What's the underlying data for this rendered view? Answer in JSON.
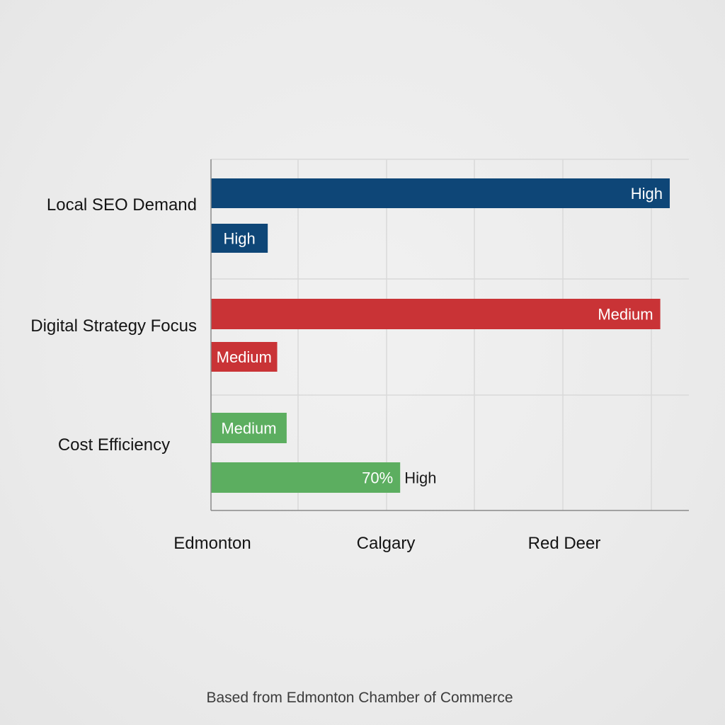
{
  "chart_data": {
    "type": "bar",
    "orientation": "horizontal",
    "title": "",
    "xlabel": "",
    "ylabel": "",
    "x_tick_labels": [
      "Edmonton",
      "Calgary",
      "Red Deer"
    ],
    "xlim": [
      0,
      100
    ],
    "grid": true,
    "legend": "none",
    "categories": [
      "Local SEO Demand",
      "Digital Strategy Focus",
      "Cost Efficiency"
    ],
    "bars": [
      {
        "category": "Local SEO Demand",
        "value": 97,
        "color": "#0e4677",
        "label": "High",
        "label_position": "inside-end"
      },
      {
        "category": "Local SEO Demand",
        "value": 12,
        "color": "#0e4677",
        "label": "High",
        "label_position": "inside-center"
      },
      {
        "category": "Digital Strategy Focus",
        "value": 95,
        "color": "#c93336",
        "label": "Medium",
        "label_position": "inside-end"
      },
      {
        "category": "Digital Strategy Focus",
        "value": 14,
        "color": "#c93336",
        "label": "Medium",
        "label_position": "inside-center"
      },
      {
        "category": "Cost Efficiency",
        "value": 16,
        "color": "#5cae60",
        "label": "Medium",
        "label_position": "inside-center"
      },
      {
        "category": "Cost Efficiency",
        "value": 40,
        "color": "#5cae60",
        "label": "70%",
        "label_position": "inside-end",
        "outside_label": "High"
      }
    ]
  },
  "footer": {
    "source": "Based from Edmonton Chamber of Commerce"
  }
}
